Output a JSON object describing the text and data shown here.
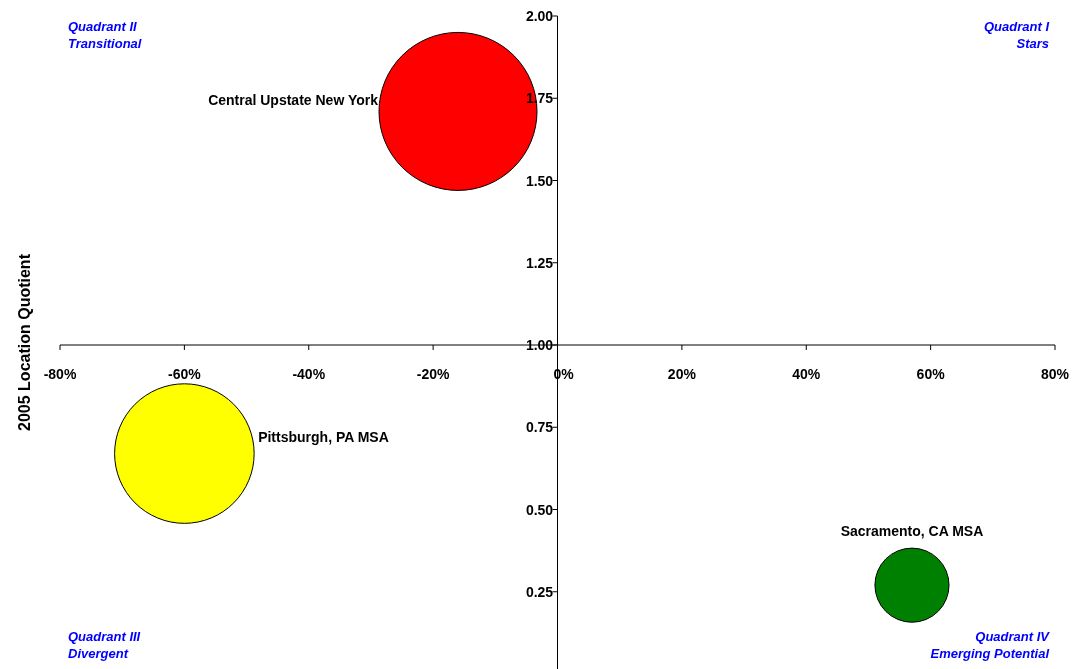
{
  "chart_data": {
    "type": "bubble",
    "ylabel": "2005 Location Quotient",
    "xlim": [
      -80,
      80
    ],
    "ylim": [
      0,
      2
    ],
    "xticks": [
      {
        "value": -80,
        "label": "-80%"
      },
      {
        "value": -60,
        "label": "-60%"
      },
      {
        "value": -40,
        "label": "-40%"
      },
      {
        "value": -20,
        "label": "-20%"
      },
      {
        "value": 0,
        "label": "0%"
      },
      {
        "value": 20,
        "label": "20%"
      },
      {
        "value": 40,
        "label": "40%"
      },
      {
        "value": 60,
        "label": "60%"
      },
      {
        "value": 80,
        "label": "80%"
      }
    ],
    "yticks": [
      {
        "value": 0.25,
        "label": "0.25"
      },
      {
        "value": 0.5,
        "label": "0.50"
      },
      {
        "value": 0.75,
        "label": "0.75"
      },
      {
        "value": 1,
        "label": "1.00"
      },
      {
        "value": 1.25,
        "label": "1.25"
      },
      {
        "value": 1.5,
        "label": "1.50"
      },
      {
        "value": 1.75,
        "label": "1.75"
      },
      {
        "value": 2,
        "label": "2.00"
      }
    ],
    "series": [
      {
        "name": "Central Upstate New York",
        "color": "#ff0000",
        "x": [
          -16
        ],
        "values": [
          1.71
        ],
        "sizes": [
          1
        ]
      },
      {
        "name": "Pittsburgh, PA MSA",
        "color": "#ffff00",
        "x": [
          -60
        ],
        "values": [
          0.67
        ],
        "sizes": [
          0.78
        ]
      },
      {
        "name": "Sacramento, CA MSA",
        "color": "#008000",
        "x": [
          57
        ],
        "values": [
          0.27
        ],
        "sizes": [
          0.22
        ]
      }
    ],
    "annotations": [
      "Quadrant II\nTransitional",
      "Quadrant I\nStars",
      "Quadrant III\nDivergent",
      "Quadrant IV\nEmerging Potential"
    ],
    "grid": false
  }
}
